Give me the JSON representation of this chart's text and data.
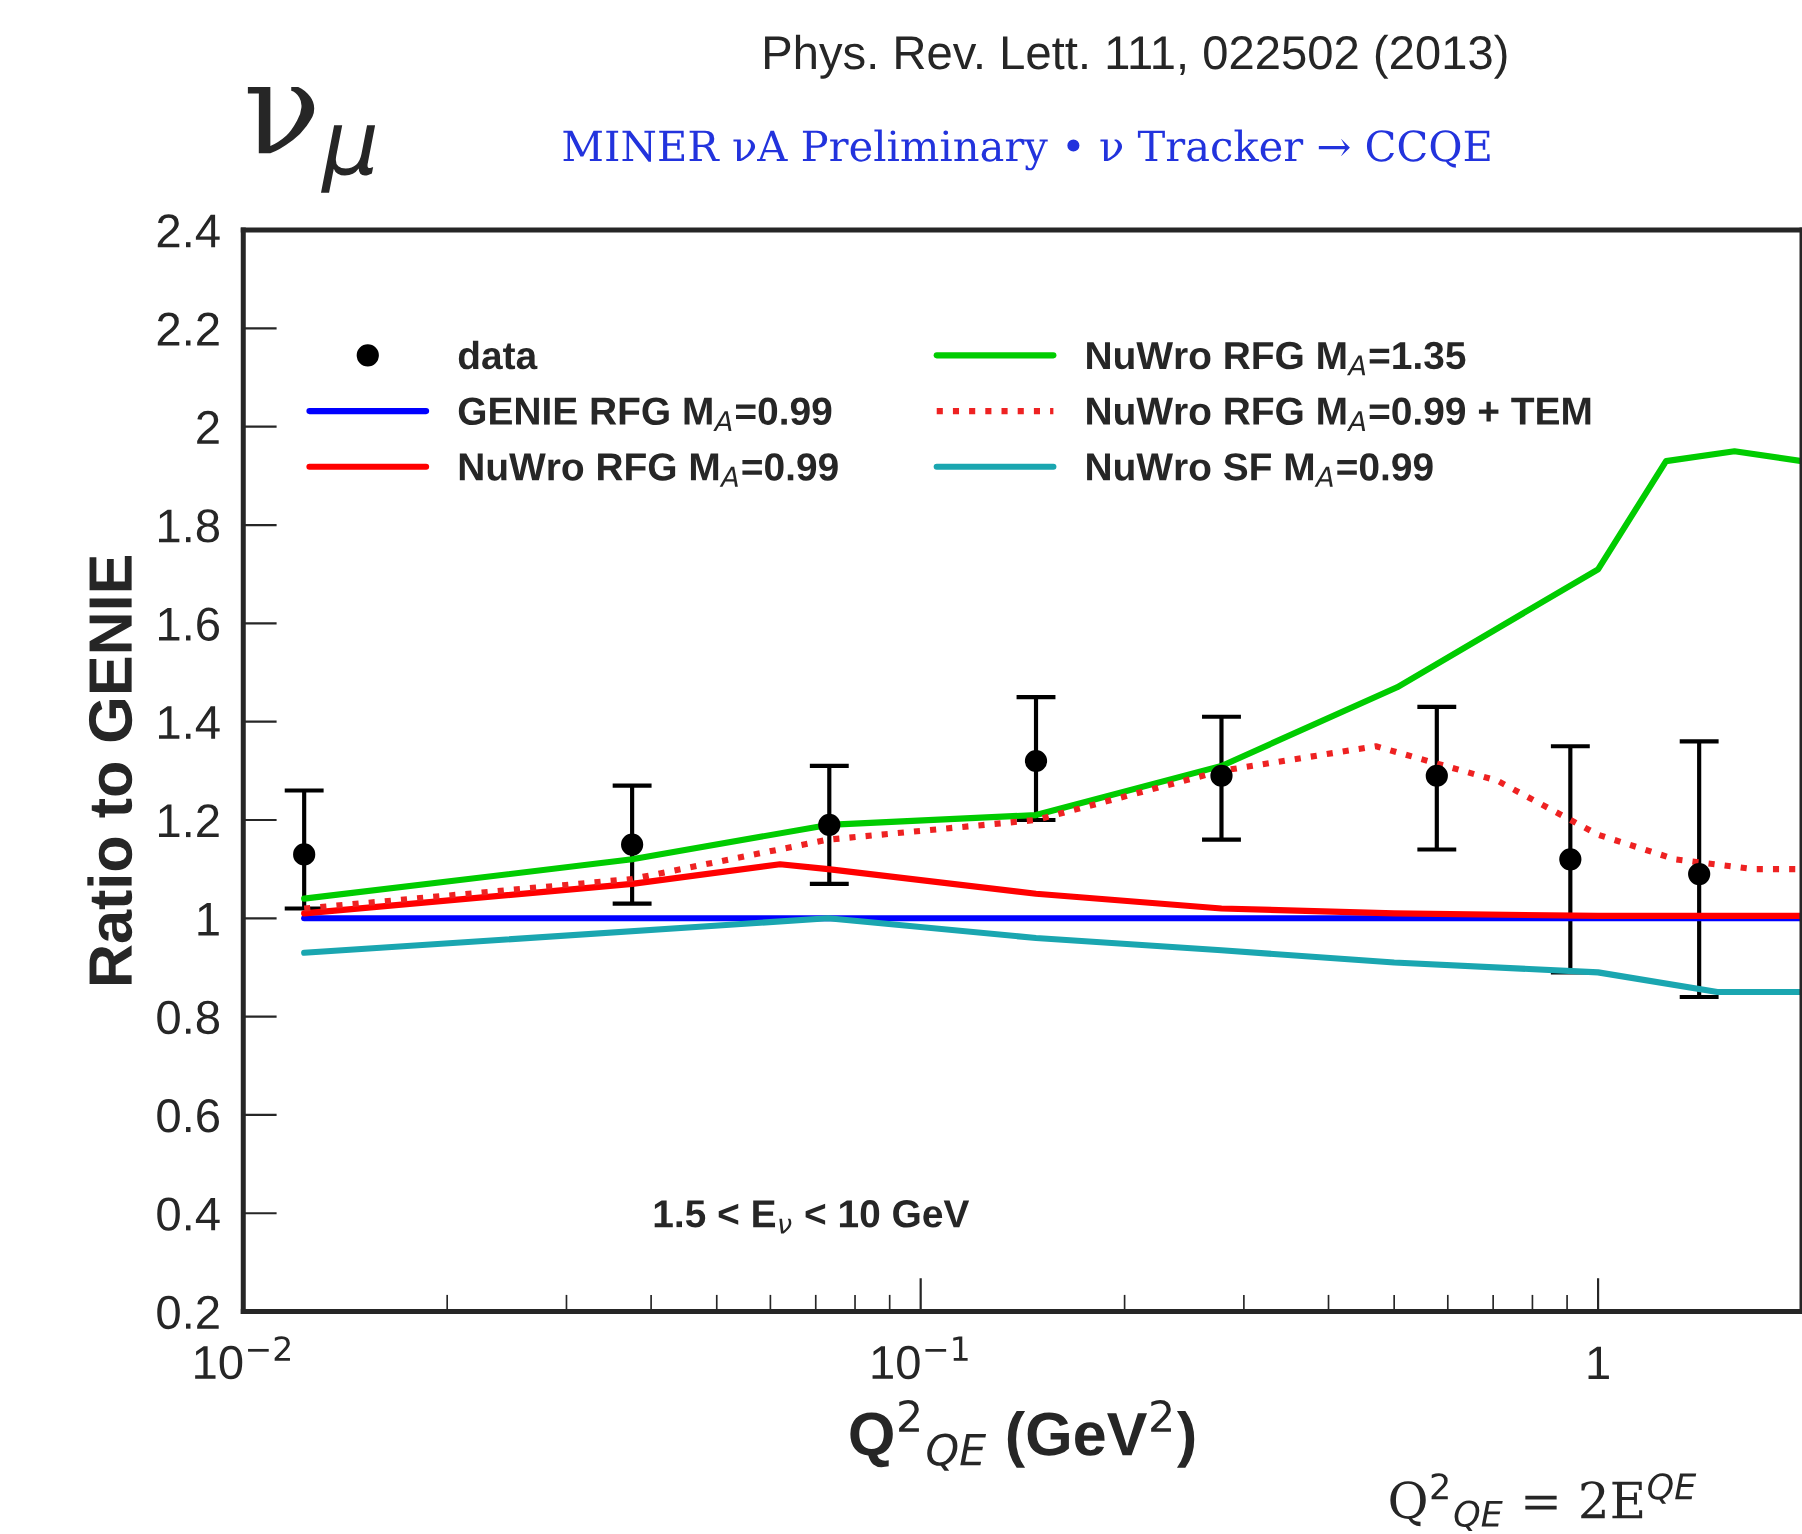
{
  "chart_data": {
    "type": "line",
    "title": "Phys. Rev. Lett. 111, 022502 (2013)",
    "subtitle": "MINER νA Preliminary • ν Tracker → CCQE",
    "xlabel": "Q$^{2}$$_{QE}$ (GeV$^{2}$)",
    "ylabel": "Ratio to GENIE",
    "annotations": [
      "ν$_{μ}$",
      "1.5 < E$_{ν}$ < 10 GeV",
      "Q$^{2}$$_{QE}$ = 2E$^{QE}$"
    ],
    "log": "x",
    "xlim": [
      0.01,
      2
    ],
    "xticks": [
      {
        "value": 0.01,
        "label": "10$^{−2}$"
      },
      {
        "value": 0.1,
        "label": "10$^{−1}$"
      },
      1
    ],
    "ylim": [
      0.2,
      2.4
    ],
    "yticks": [
      0.2,
      0.4,
      0.6,
      0.8,
      1,
      1.2,
      1.4,
      1.6,
      1.8,
      2,
      2.2,
      2.4
    ],
    "grid": false,
    "legend": "top left",
    "series": [
      {
        "name": "data",
        "type": "scatter",
        "marker": "circle",
        "color": "#000000",
        "x": [
          0.0123,
          0.0375,
          0.0733,
          0.148,
          0.278,
          0.578,
          0.91,
          1.41
        ],
        "values": [
          1.13,
          1.15,
          1.19,
          1.32,
          1.29,
          1.29,
          1.12,
          1.09
        ],
        "errors": [
          [
            1.02,
            1.26
          ],
          [
            1.03,
            1.27
          ],
          [
            1.07,
            1.31
          ],
          [
            1.2,
            1.45
          ],
          [
            1.16,
            1.41
          ],
          [
            1.14,
            1.43
          ],
          [
            0.89,
            1.35
          ],
          [
            0.84,
            1.36
          ]
        ]
      },
      {
        "name": "GENIE RFG M$_{A}$=0.99",
        "color": "#0000ff",
        "line_style": "solid",
        "x": [
          0.0123,
          2
        ],
        "values": [
          1,
          1
        ]
      },
      {
        "name": "NuWro RFG M$_{A}$=0.99",
        "color": "#ff0000",
        "line_style": "solid",
        "x": [
          0.0123,
          0.0375,
          0.062,
          0.073,
          0.148,
          0.278,
          0.5,
          1,
          2
        ],
        "values": [
          1.01,
          1.07,
          1.11,
          1.1,
          1.05,
          1.02,
          1.01,
          1.005,
          1.005
        ]
      },
      {
        "name": "NuWro RFG M$_{A}$=1.35",
        "color": "#00cc00",
        "line_style": "solid",
        "x": [
          0.0123,
          0.0375,
          0.073,
          0.148,
          0.278,
          0.505,
          1,
          1.26,
          1.59,
          2
        ],
        "values": [
          1.04,
          1.12,
          1.19,
          1.21,
          1.31,
          1.47,
          1.71,
          1.93,
          1.95,
          1.93
        ]
      },
      {
        "name": "NuWro RFG M$_{A}$=0.99 + TEM",
        "color": "#ee2222",
        "line_style": "dotted",
        "x": [
          0.0123,
          0.0375,
          0.073,
          0.148,
          0.278,
          0.47,
          0.71,
          1,
          1.3,
          1.7,
          2
        ],
        "values": [
          1.02,
          1.08,
          1.16,
          1.2,
          1.3,
          1.35,
          1.28,
          1.17,
          1.12,
          1.1,
          1.1
        ]
      },
      {
        "name": "NuWro SF M$_{A}$=0.99",
        "color": "#1aa6b0",
        "line_style": "solid",
        "x": [
          0.0123,
          0.073,
          0.148,
          0.278,
          0.5,
          1,
          1.5,
          2
        ],
        "values": [
          0.93,
          1.0,
          0.96,
          0.935,
          0.91,
          0.89,
          0.85,
          0.85
        ]
      }
    ]
  }
}
